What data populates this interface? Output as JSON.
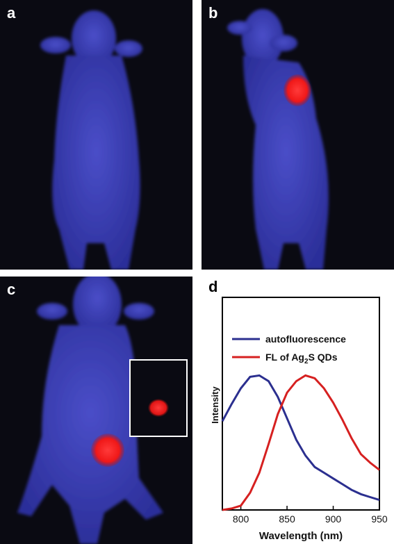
{
  "panels": {
    "a": {
      "label": "a"
    },
    "b": {
      "label": "b"
    },
    "c": {
      "label": "c"
    },
    "d": {
      "label": "d"
    }
  },
  "colors": {
    "background_dark": "#0a0a12",
    "mouse_blue": "#3b3fb8",
    "tumor_red": "#ff2a2a",
    "autofluorescence_line": "#2b2f8f",
    "ag2s_line": "#d62020"
  },
  "chart_data": {
    "type": "line",
    "xlabel": "Wavelength (nm)",
    "ylabel": "Intensity",
    "xlim": [
      780,
      950
    ],
    "xticks": [
      800,
      850,
      900,
      950
    ],
    "legend_placement": "top-left",
    "series": [
      {
        "name": "autofluorescence",
        "color": "#2b2f8f",
        "x": [
          780,
          790,
          800,
          810,
          820,
          830,
          840,
          850,
          860,
          870,
          880,
          890,
          900,
          910,
          920,
          930,
          940,
          950
        ],
        "y": [
          0.62,
          0.74,
          0.85,
          0.93,
          0.94,
          0.9,
          0.79,
          0.64,
          0.49,
          0.38,
          0.3,
          0.26,
          0.22,
          0.18,
          0.14,
          0.11,
          0.09,
          0.07
        ]
      },
      {
        "name": "FL of Ag2S QDs",
        "name_main": "FL of Ag",
        "name_sub": "2",
        "name_tail": "S QDs",
        "color": "#d62020",
        "x": [
          780,
          790,
          800,
          810,
          820,
          830,
          840,
          850,
          860,
          870,
          880,
          890,
          900,
          910,
          920,
          930,
          940,
          950
        ],
        "y": [
          0.0,
          0.01,
          0.03,
          0.12,
          0.26,
          0.46,
          0.67,
          0.82,
          0.9,
          0.94,
          0.92,
          0.85,
          0.75,
          0.63,
          0.5,
          0.39,
          0.33,
          0.28
        ]
      }
    ]
  }
}
